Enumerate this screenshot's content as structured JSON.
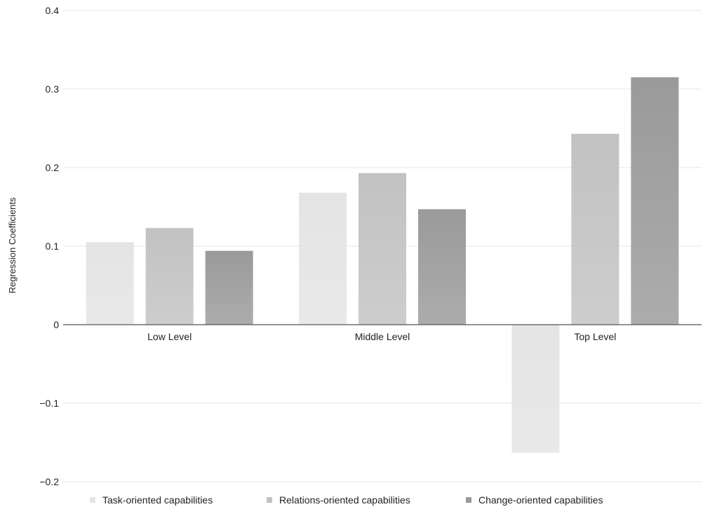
{
  "chart_data": {
    "type": "bar",
    "ylabel": "Regression Coefficients",
    "xlabel": "",
    "ylim": [
      -0.2,
      0.4
    ],
    "yticks": [
      {
        "value": 0.4,
        "label": "0.4"
      },
      {
        "value": 0.3,
        "label": "0.3"
      },
      {
        "value": 0.2,
        "label": "0.2"
      },
      {
        "value": 0.1,
        "label": "0.1"
      },
      {
        "value": 0,
        "label": "0"
      },
      {
        "value": -0.1,
        "label": "−0.1"
      },
      {
        "value": -0.2,
        "label": "−0.2"
      }
    ],
    "categories": [
      "Low Level",
      "Middle Level",
      "Top Level"
    ],
    "series": [
      {
        "name": "Task-oriented capabilities",
        "values": [
          0.105,
          0.168,
          -0.163
        ],
        "color": "#e4e4e4"
      },
      {
        "name": "Relations-oriented capabilities",
        "values": [
          0.123,
          0.193,
          0.243
        ],
        "color": "#c2c2c2"
      },
      {
        "name": "Change-oriented capabilities",
        "values": [
          0.094,
          0.147,
          0.315
        ],
        "color": "#9a9a9a"
      }
    ],
    "grid": true,
    "legend_position": "bottom"
  }
}
